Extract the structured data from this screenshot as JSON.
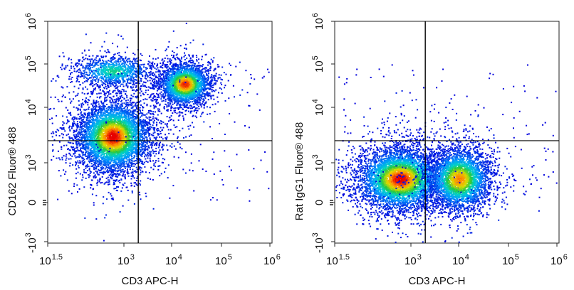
{
  "chart_data": [
    {
      "type": "scatter",
      "subtype": "flow-cytometry-density-plot",
      "xlabel": "CD3 APC-H",
      "ylabel": "CD162  Fluor® 488",
      "x_ticks": [
        {
          "base": "10",
          "exp": "1.5"
        },
        {
          "base": "10",
          "exp": "3"
        },
        {
          "base": "10",
          "exp": "4"
        },
        {
          "base": "10",
          "exp": "5"
        },
        {
          "base": "10",
          "exp": "6"
        }
      ],
      "y_ticks": [
        {
          "base": "10",
          "exp": "6"
        },
        {
          "base": "10",
          "exp": "5"
        },
        {
          "base": "10",
          "exp": "4"
        },
        {
          "base": "10",
          "exp": "3"
        },
        {
          "base": "",
          "exp": "",
          "label": "0"
        },
        {
          "base": "-10",
          "exp": "3"
        }
      ],
      "quadrant_gates": {
        "x": 2000,
        "y": 2500
      },
      "populations": [
        {
          "name": "CD3- CD162+ (mid)",
          "x_center": 600,
          "y_center": 3000
        },
        {
          "name": "CD3+ CD162 high",
          "x_center": 18000,
          "y_center": 35000
        },
        {
          "name": "CD3- CD162 high",
          "x_center": 600,
          "y_center": 70000
        }
      ]
    },
    {
      "type": "scatter",
      "subtype": "flow-cytometry-density-plot",
      "xlabel": "CD3 APC-H",
      "ylabel": "Rat IgG1 Fluor® 488",
      "x_ticks": [
        {
          "base": "10",
          "exp": "1.5"
        },
        {
          "base": "10",
          "exp": "3"
        },
        {
          "base": "10",
          "exp": "4"
        },
        {
          "base": "10",
          "exp": "5"
        },
        {
          "base": "10",
          "exp": "6"
        }
      ],
      "y_ticks": [
        {
          "base": "10",
          "exp": "6"
        },
        {
          "base": "10",
          "exp": "5"
        },
        {
          "base": "10",
          "exp": "4"
        },
        {
          "base": "10",
          "exp": "3"
        },
        {
          "base": "",
          "exp": "",
          "label": "0"
        },
        {
          "base": "-10",
          "exp": "3"
        }
      ],
      "quadrant_gates": {
        "x": 2000,
        "y": 2500
      },
      "populations": [
        {
          "name": "CD3- isotype",
          "x_center": 600,
          "y_center": 600
        },
        {
          "name": "CD3+ isotype",
          "x_center": 10000,
          "y_center": 600
        }
      ]
    }
  ]
}
